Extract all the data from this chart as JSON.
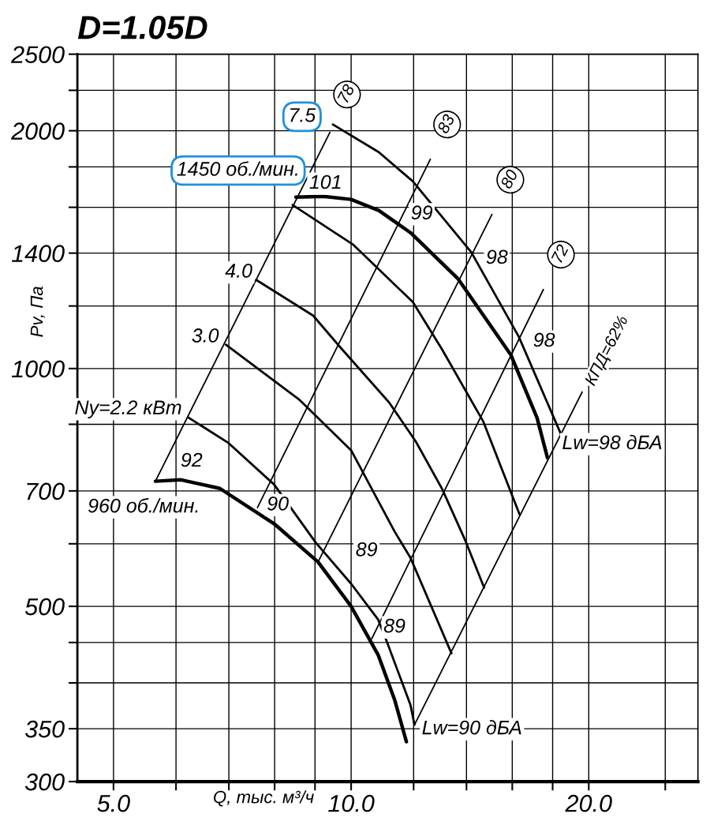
{
  "chart_data": {
    "type": "line",
    "title": "D=1.05D",
    "xlabel": "Q, тыс. м³/ч",
    "ylabel": "Pv, Па",
    "log": "xy",
    "grid": true,
    "legend": false,
    "marker": "none",
    "line_style": "solid",
    "xlim": [
      4.5,
      27.5
    ],
    "ylim": [
      300,
      2500
    ],
    "xticks": [
      {
        "value": 5,
        "label": "5.0"
      },
      {
        "value": 6,
        "label": null
      },
      {
        "value": 7,
        "label": null
      },
      {
        "value": 8,
        "label": null
      },
      {
        "value": 9,
        "label": null
      },
      {
        "value": 10,
        "label": "10.0"
      },
      {
        "value": 12,
        "label": null
      },
      {
        "value": 14,
        "label": null
      },
      {
        "value": 16,
        "label": null
      },
      {
        "value": 18,
        "label": null
      },
      {
        "value": 20,
        "label": "20.0"
      },
      {
        "value": 25,
        "label": null
      }
    ],
    "yticks": [
      300,
      350,
      {
        "value": 400,
        "label": null
      },
      {
        "value": 450,
        "label": null
      },
      500,
      {
        "value": 600,
        "label": null
      },
      700,
      {
        "value": 850,
        "label": null
      },
      1000,
      {
        "value": 1200,
        "label": null
      },
      1400,
      {
        "value": 1600,
        "label": null
      },
      {
        "value": 1800,
        "label": null
      },
      2000,
      {
        "value": 2250,
        "label": null
      },
      2500
    ],
    "series": [
      {
        "color": "#000000",
        "x": [
          9.48,
          10.84,
          11.97,
          14.2,
          16.31,
          18.44
        ],
        "values": [
          2037,
          1879,
          1726,
          1403,
          1097,
          826
        ]
      },
      {
        "color": "#000000",
        "x": [
          8.51,
          9.22,
          10.0,
          10.84,
          11.89,
          13.65,
          15.94,
          17.2,
          17.73
        ],
        "values": [
          1648,
          1652,
          1637,
          1585,
          1486,
          1300,
          1040,
          866,
          771
        ]
      },
      {
        "color": "#000000",
        "x": [
          8.43,
          10.05,
          11.97,
          13.04,
          14.71,
          16.35
        ],
        "values": [
          1611,
          1436,
          1214,
          1057,
          856,
          653
        ]
      },
      {
        "color": "#000000",
        "x": [
          7.58,
          8.95,
          9.68,
          11.17,
          12.08,
          13.04,
          13.98,
          14.74
        ],
        "values": [
          1295,
          1167,
          1065,
          906,
          808,
          704,
          603,
          528
        ]
      },
      {
        "color": "#000000",
        "x": [
          6.94,
          8.6,
          10.0,
          11.36,
          11.89,
          13.4
        ],
        "values": [
          1072,
          913,
          788,
          621,
          576,
          436
        ]
      },
      {
        "color": "#000000",
        "x": [
          6.22,
          6.98,
          7.99,
          9.02,
          10.0,
          10.82,
          11.1,
          11.89,
          12.03
        ],
        "values": [
          867,
          806,
          713,
          602,
          534,
          481,
          451,
          375,
          354
        ]
      },
      {
        "color": "#000000",
        "x": [
          5.65,
          6.09,
          6.82,
          7.99,
          9.08,
          10.0,
          10.82,
          11.36,
          11.75
        ],
        "values": [
          720,
          723,
          705,
          636,
          569,
          500,
          434,
          380,
          337
        ]
      },
      {
        "color": "#000000",
        "x": [
          5.65,
          9.4
        ],
        "values": [
          720,
          1991
        ]
      },
      {
        "color": "#000000",
        "x": [
          7.61,
          12.6
        ],
        "values": [
          667,
          1841
        ]
      },
      {
        "color": "#000000",
        "x": [
          9.08,
          15.08
        ],
        "values": [
          569,
          1567
        ]
      },
      {
        "color": "#000000",
        "x": [
          10.62,
          17.52
        ],
        "values": [
          455,
          1259
        ]
      },
      {
        "color": "#000000",
        "x": [
          12.03,
          19.62
        ],
        "values": [
          354,
          934
        ]
      }
    ],
    "annotations": [
      "7.5",
      "1450 об./мин.",
      "101",
      "99",
      "98",
      "98",
      "Lw=98 дБА",
      "4.0",
      "3.0",
      "Ny=2.2 кВт",
      "92",
      "960 об./мин.",
      "90",
      "89",
      "89",
      "Lw=90 дБА",
      {
        "text": "78",
        "x": 9.88,
        "y": 2223
      },
      {
        "text": "83",
        "x": 13.23,
        "y": 2037
      },
      {
        "text": "80",
        "x": 15.91,
        "y": 1734
      },
      {
        "text": "72",
        "x": 18.44,
        "y": 1394
      },
      "КПД=62%"
    ]
  }
}
